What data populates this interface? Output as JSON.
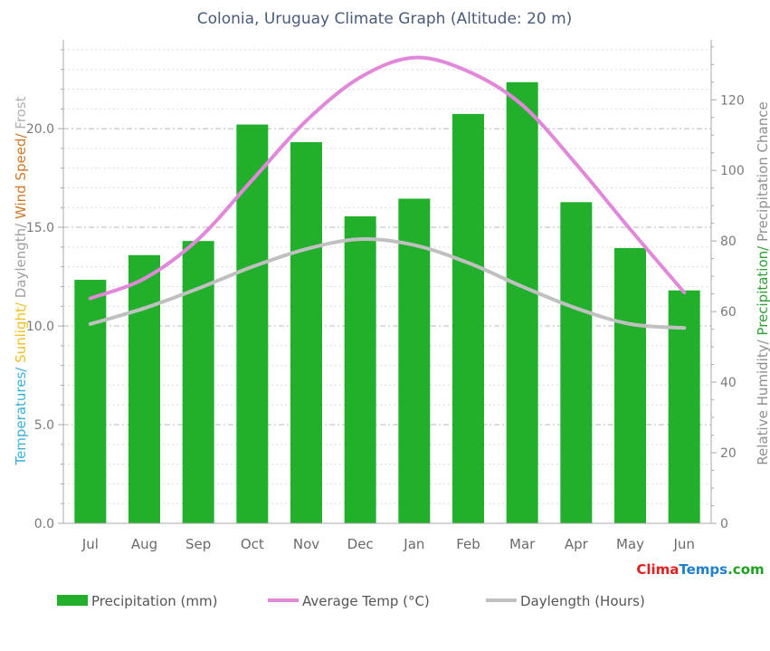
{
  "chart_data": {
    "type": "bar",
    "title": "Colonia, Uruguay Climate Graph (Altitude: 20 m)",
    "categories": [
      "Jul",
      "Aug",
      "Sep",
      "Oct",
      "Nov",
      "Dec",
      "Jan",
      "Feb",
      "Mar",
      "Apr",
      "May",
      "Jun"
    ],
    "series": [
      {
        "name": "Precipitation (mm)",
        "type": "bar",
        "axis": "right",
        "values": [
          69,
          76,
          80,
          113,
          108,
          87,
          92,
          116,
          125,
          91,
          78,
          66
        ],
        "color": "#22b02c"
      },
      {
        "name": "Average Temp (°C)",
        "type": "line",
        "axis": "left",
        "values": [
          11.4,
          12.4,
          14.4,
          17.4,
          20.4,
          22.6,
          23.6,
          22.9,
          21.2,
          18.2,
          14.9,
          11.7
        ],
        "color": "#e188da"
      },
      {
        "name": "Daylength (Hours)",
        "type": "line",
        "axis": "left",
        "values": [
          10.1,
          10.9,
          11.9,
          13.0,
          13.9,
          14.4,
          14.1,
          13.2,
          12.0,
          10.9,
          10.1,
          9.9
        ],
        "color": "#c0c0c0"
      }
    ],
    "y_left": {
      "ticks": [
        "0.0",
        "5.0",
        "10.0",
        "15.0",
        "20.0"
      ],
      "tick_values": [
        0,
        5,
        10,
        15,
        20
      ],
      "range": [
        0,
        24.5
      ],
      "label_parts": [
        {
          "text": "Temperatures/ ",
          "color": "#3ab0d8"
        },
        {
          "text": "Sunlight/ ",
          "color": "#f0c020"
        },
        {
          "text": "Daylength/ ",
          "color": "#a0a0a0"
        },
        {
          "text": "Wind Speed/ ",
          "color": "#d07828"
        },
        {
          "text": "Frost",
          "color": "#b0b0b0"
        }
      ]
    },
    "y_right": {
      "ticks": [
        "0",
        "20",
        "40",
        "60",
        "80",
        "100",
        "120"
      ],
      "tick_values": [
        0,
        20,
        40,
        60,
        80,
        100,
        120
      ],
      "range": [
        0,
        137
      ],
      "label_parts": [
        {
          "text": "Relative Humidity/ ",
          "color": "#909090"
        },
        {
          "text": "Precipitation/ ",
          "color": "#30a038"
        },
        {
          "text": "Precipitation Chance",
          "color": "#909090"
        }
      ]
    },
    "grid": true,
    "legend_position": "bottom"
  },
  "watermark": {
    "part1": "Clima",
    "part2": "Temps",
    "part3": ".com",
    "color1": "#e02020",
    "color2": "#2080d0",
    "color3": "#20a020"
  }
}
